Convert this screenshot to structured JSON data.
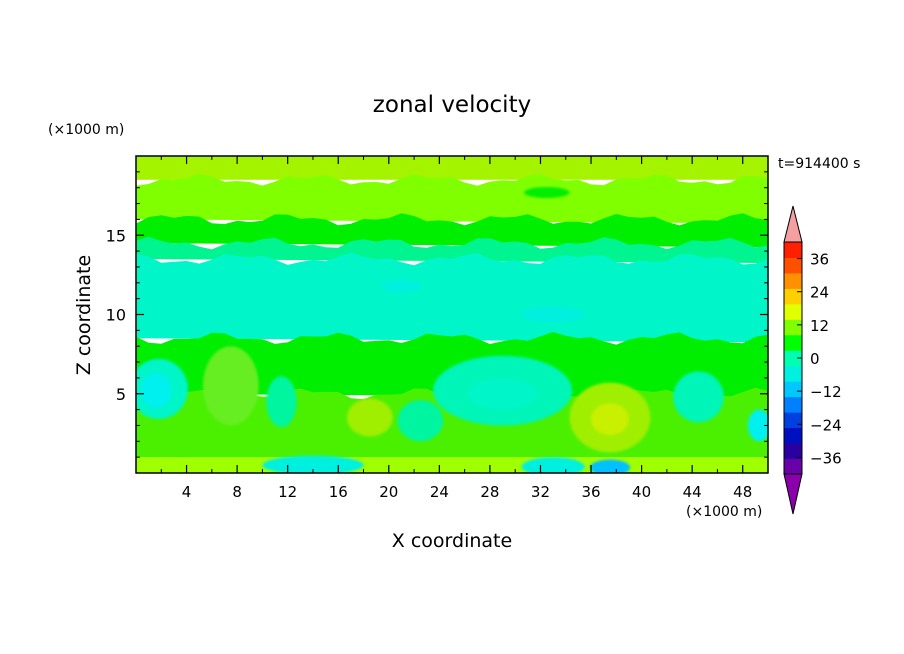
{
  "chart_data": {
    "type": "heatmap",
    "title": "zonal velocity",
    "xlabel": "X coordinate",
    "ylabel": "Z coordinate",
    "x_unit": "(×1000 m)",
    "y_unit": "(×1000 m)",
    "time_label": "t=914400 s",
    "xlim": [
      0,
      50
    ],
    "ylim": [
      0,
      20
    ],
    "x_ticks": [
      4,
      8,
      12,
      16,
      20,
      24,
      28,
      32,
      36,
      40,
      44,
      48
    ],
    "y_ticks": [
      5,
      10,
      15
    ],
    "colorbar": {
      "levels": [
        -42,
        -36,
        -30,
        -24,
        -18,
        -12,
        -6,
        0,
        6,
        12,
        18,
        24,
        30,
        36,
        42
      ],
      "tick_labels": [
        "36",
        "24",
        "12",
        "0",
        "−12",
        "−24",
        "−36"
      ],
      "tick_values": [
        36,
        24,
        12,
        0,
        -12,
        -24,
        -36
      ],
      "colors": [
        "#6a00a8",
        "#2a00a0",
        "#0010c0",
        "#0040e0",
        "#0080ff",
        "#00c8ff",
        "#00f0e0",
        "#00ffb0",
        "#00ff00",
        "#80ff00",
        "#e0ff00",
        "#ffd000",
        "#ff9000",
        "#ff5000",
        "#ff2000"
      ],
      "under_color": "#8a00aa",
      "over_color": "#f4a0a0"
    },
    "bands": [
      {
        "z_range": [
          18.5,
          20
        ],
        "u": 9,
        "color": "#a4f400"
      },
      {
        "z_range": [
          16,
          18.5
        ],
        "u": 7,
        "color": "#80ff00"
      },
      {
        "z_range": [
          14.5,
          16
        ],
        "u": 2,
        "color": "#00ee00"
      },
      {
        "z_range": [
          13.5,
          14.5
        ],
        "u": -2,
        "color": "#00f590"
      },
      {
        "z_range": [
          8.5,
          13.5
        ],
        "u": -8,
        "color": "#00f5c8"
      },
      {
        "z_range": [
          5,
          8.5
        ],
        "u": 2,
        "color": "#00ee00"
      },
      {
        "z_range": [
          1,
          5
        ],
        "u": 4,
        "color": "#4af000"
      },
      {
        "z_range": [
          0,
          1
        ],
        "u": 8,
        "color": "#a0ff00"
      }
    ],
    "features": [
      {
        "x": 1.8,
        "z": 5.3,
        "rx": 2.3,
        "rz": 1.9,
        "color": "#00f5c8",
        "u": -9
      },
      {
        "x": 1.6,
        "z": 5.2,
        "rx": 1.2,
        "rz": 1.1,
        "color": "#00f0f0",
        "u": -13
      },
      {
        "x": 7.5,
        "z": 5.5,
        "rx": 2.2,
        "rz": 2.5,
        "color": "#66ee22",
        "u": 6
      },
      {
        "x": 11.5,
        "z": 4.5,
        "rx": 1.2,
        "rz": 1.6,
        "color": "#00f5a0",
        "u": -3
      },
      {
        "x": 18.5,
        "z": 3.5,
        "rx": 1.8,
        "rz": 1.2,
        "color": "#a0ee00",
        "u": 9
      },
      {
        "x": 22.5,
        "z": 3.3,
        "rx": 1.8,
        "rz": 1.3,
        "color": "#00f5a0",
        "u": -3
      },
      {
        "x": 29,
        "z": 5.2,
        "rx": 5.5,
        "rz": 2.2,
        "color": "#00f5b8",
        "u": -6
      },
      {
        "x": 29,
        "z": 5.0,
        "rx": 2.8,
        "rz": 1.0,
        "color": "#00f5c8",
        "u": -9
      },
      {
        "x": 37.5,
        "z": 3.5,
        "rx": 3.2,
        "rz": 2.2,
        "color": "#a0ee00",
        "u": 9
      },
      {
        "x": 37.5,
        "z": 3.4,
        "rx": 1.5,
        "rz": 1.0,
        "color": "#c8f000",
        "u": 12
      },
      {
        "x": 37.5,
        "z": 0.35,
        "rx": 1.6,
        "rz": 0.5,
        "color": "#00c0ff",
        "u": -18
      },
      {
        "x": 33,
        "z": 0.4,
        "rx": 2.5,
        "rz": 0.6,
        "color": "#00f0e0",
        "u": -12
      },
      {
        "x": 14,
        "z": 0.5,
        "rx": 4,
        "rz": 0.6,
        "color": "#00f0e0",
        "u": -10
      },
      {
        "x": 44.5,
        "z": 4.8,
        "rx": 2.0,
        "rz": 1.6,
        "color": "#00f5b8",
        "u": -6
      },
      {
        "x": 49.3,
        "z": 3.0,
        "rx": 0.9,
        "rz": 1.0,
        "color": "#00f0f0",
        "u": -12
      },
      {
        "x": 32.5,
        "z": 17.7,
        "rx": 1.8,
        "rz": 0.35,
        "color": "#00ee00",
        "u": 2
      },
      {
        "x": 21,
        "z": 11.8,
        "rx": 1.5,
        "rz": 0.4,
        "color": "#00f0e0",
        "u": -11
      },
      {
        "x": 33,
        "z": 10.0,
        "rx": 2.5,
        "rz": 0.5,
        "color": "#00f0e0",
        "u": -11
      }
    ]
  }
}
